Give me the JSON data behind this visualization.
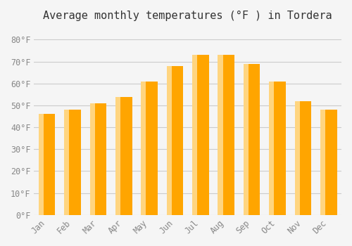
{
  "title": "Average monthly temperatures (°F ) in Tordera",
  "months": [
    "Jan",
    "Feb",
    "Mar",
    "Apr",
    "May",
    "Jun",
    "Jul",
    "Aug",
    "Sep",
    "Oct",
    "Nov",
    "Dec"
  ],
  "values": [
    46,
    48,
    51,
    54,
    61,
    68,
    73,
    73,
    69,
    61,
    52,
    48
  ],
  "bar_color_main": "#FFA500",
  "bar_color_light": "#FFD580",
  "ylim": [
    0,
    85
  ],
  "yticks": [
    0,
    10,
    20,
    30,
    40,
    50,
    60,
    70,
    80
  ],
  "ylabel_suffix": "°F",
  "background_color": "#f5f5f5",
  "grid_color": "#cccccc",
  "title_fontsize": 11,
  "tick_fontsize": 8.5,
  "font_family": "monospace"
}
